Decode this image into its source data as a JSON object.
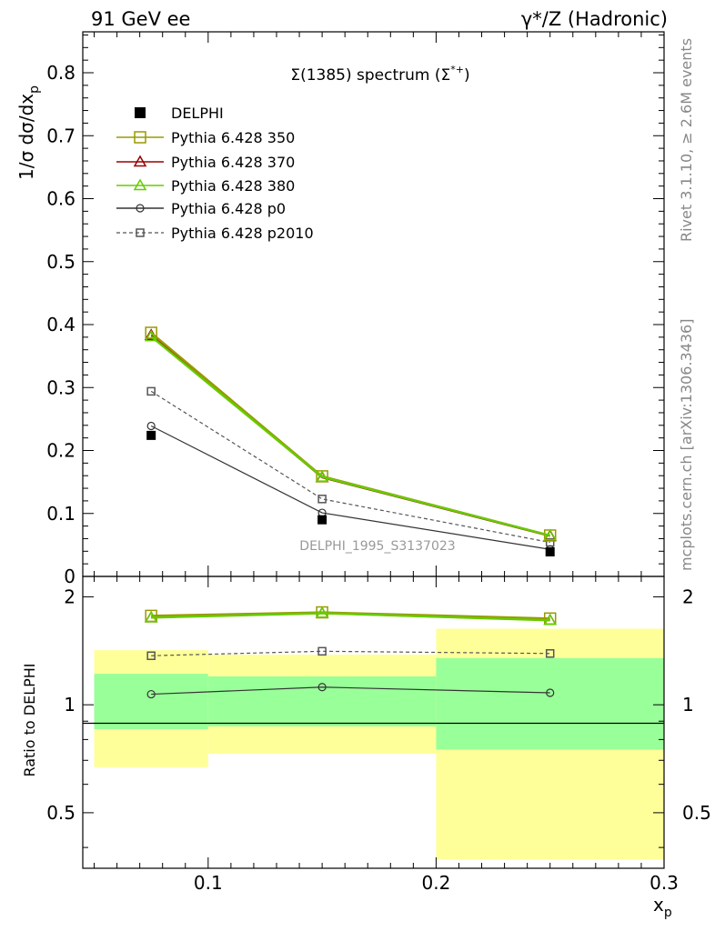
{
  "header": {
    "left": "91 GeV ee",
    "right": "γ*/Z (Hadronic)"
  },
  "side_text": {
    "rivet": "Rivet 3.1.10, ≥ 2.6M events",
    "mcplots": "mcplots.cern.ch [arXiv:1306.3436]"
  },
  "colors": {
    "delphi": "#000000",
    "p350": "#999900",
    "p370": "#990000",
    "p380": "#66cc00",
    "p0": "#333333",
    "p2010": "#555555",
    "band_inner": "#99ff99",
    "band_outer": "#ffff99"
  },
  "chart_data": [
    {
      "type": "line",
      "title": "Σ(1385) spectrum (Σ*+)",
      "ylabel": "1/σ dσ/dxp",
      "xlabel": "",
      "xlim": [
        0.045,
        0.3
      ],
      "ylim": [
        0,
        0.865
      ],
      "yticks": [
        "0",
        "0.1",
        "0.2",
        "0.3",
        "0.4",
        "0.5",
        "0.6",
        "0.7",
        "0.8"
      ],
      "ytick_values": [
        0,
        0.1,
        0.2,
        0.3,
        0.4,
        0.5,
        0.6,
        0.7,
        0.8
      ],
      "watermark": "DELPHI_1995_S3137023",
      "legend_position": "top-left",
      "x": [
        0.075,
        0.15,
        0.25
      ],
      "series": [
        {
          "name": "DELPHI",
          "values": [
            0.224,
            0.09,
            0.039
          ],
          "style": "data"
        },
        {
          "name": "Pythia 6.428 350",
          "values": [
            0.387,
            0.159,
            0.065
          ],
          "style": "square-open"
        },
        {
          "name": "Pythia 6.428 370",
          "values": [
            0.383,
            0.157,
            0.064
          ],
          "style": "triangle"
        },
        {
          "name": "Pythia 6.428 380",
          "values": [
            0.381,
            0.158,
            0.065
          ],
          "style": "triangle"
        },
        {
          "name": "Pythia 6.428 p0",
          "values": [
            0.239,
            0.101,
            0.043
          ],
          "style": "circle"
        },
        {
          "name": "Pythia 6.428 p2010",
          "values": [
            0.294,
            0.123,
            0.054
          ],
          "style": "square-dashed"
        }
      ]
    },
    {
      "type": "line",
      "ylabel": "Ratio to DELPHI",
      "xlabel": "xp",
      "xlim": [
        0.045,
        0.3
      ],
      "ylim": [
        0.35,
        2.28
      ],
      "yscale": "log",
      "yticks": [
        "0.5",
        "1",
        "2"
      ],
      "ytick_values": [
        0.5,
        1,
        2
      ],
      "xticks": [
        "0.1",
        "0.2",
        "0.3"
      ],
      "xtick_values": [
        0.1,
        0.2,
        0.3
      ],
      "bands": [
        {
          "x": [
            0.05,
            0.1
          ],
          "inner": [
            0.855,
            1.22
          ],
          "outer": [
            0.67,
            1.42
          ]
        },
        {
          "x": [
            0.1,
            0.2
          ],
          "inner": [
            0.87,
            1.2
          ],
          "outer": [
            0.73,
            1.38
          ]
        },
        {
          "x": [
            0.2,
            0.3
          ],
          "inner": [
            0.75,
            1.35
          ],
          "outer": [
            0.37,
            1.63
          ]
        }
      ],
      "x": [
        0.075,
        0.15,
        0.25
      ],
      "series": [
        {
          "name": "Pythia 6.428 350",
          "values": [
            1.77,
            1.81,
            1.74
          ]
        },
        {
          "name": "Pythia 6.428 370",
          "values": [
            1.75,
            1.8,
            1.72
          ]
        },
        {
          "name": "Pythia 6.428 380",
          "values": [
            1.75,
            1.8,
            1.72
          ]
        },
        {
          "name": "Pythia 6.428 p0",
          "values": [
            1.07,
            1.12,
            1.08
          ]
        },
        {
          "name": "Pythia 6.428 p2010",
          "values": [
            1.37,
            1.41,
            1.39
          ]
        }
      ]
    }
  ]
}
